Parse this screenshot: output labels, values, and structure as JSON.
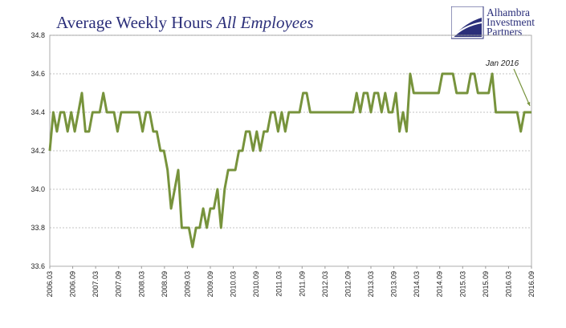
{
  "title": {
    "main": "Average Weekly Hours",
    "italic": "All Employees"
  },
  "logo": {
    "line1": "Alhambra",
    "line2": "Investment",
    "line3": "Partners"
  },
  "colors": {
    "line": "#77933c",
    "title": "#2b2f7a",
    "grid": "#b0b0b0"
  },
  "chart_data": {
    "type": "line",
    "title": "Average Weekly Hours All Employees",
    "xlabel": "",
    "ylabel": "",
    "ylim": [
      33.6,
      34.8
    ],
    "yticks": [
      "33.6",
      "33.8",
      "34.0",
      "34.2",
      "34.4",
      "34.6",
      "34.8"
    ],
    "xticks": [
      "2006.03",
      "2006.09",
      "2007.03",
      "2007.09",
      "2008.03",
      "2008.09",
      "2009.03",
      "2009.09",
      "2010.03",
      "2010.09",
      "2011.03",
      "2011.09",
      "2012.03",
      "2012.09",
      "2013.03",
      "2013.09",
      "2014.03",
      "2014.09",
      "2015.03",
      "2015.09",
      "2016.03",
      "2016.09"
    ],
    "grid": "horizontal-dashed",
    "annotation": {
      "text": "Jan 2016",
      "target": "2016.09"
    },
    "series": [
      {
        "values": [
          34.2,
          34.4,
          34.3,
          34.4,
          34.4,
          34.3,
          34.4,
          34.3,
          34.4,
          34.5,
          34.3,
          34.3,
          34.4,
          34.4,
          34.4,
          34.5,
          34.4,
          34.4,
          34.4,
          34.3,
          34.4,
          34.4,
          34.4,
          34.4,
          34.4,
          34.4,
          34.3,
          34.4,
          34.4,
          34.3,
          34.3,
          34.2,
          34.2,
          34.1,
          33.9,
          34.0,
          34.1,
          33.8,
          33.8,
          33.8,
          33.7,
          33.8,
          33.8,
          33.9,
          33.8,
          33.9,
          33.9,
          34.0,
          33.8,
          34.0,
          34.1,
          34.1,
          34.1,
          34.2,
          34.2,
          34.3,
          34.3,
          34.2,
          34.3,
          34.2,
          34.3,
          34.3,
          34.4,
          34.4,
          34.3,
          34.4,
          34.3,
          34.4,
          34.4,
          34.4,
          34.4,
          34.5,
          34.5,
          34.4,
          34.4,
          34.4,
          34.4,
          34.4,
          34.4,
          34.4,
          34.4,
          34.4,
          34.4,
          34.4,
          34.4,
          34.4,
          34.5,
          34.4,
          34.5,
          34.5,
          34.4,
          34.5,
          34.5,
          34.4,
          34.5,
          34.4,
          34.4,
          34.5,
          34.3,
          34.4,
          34.3,
          34.6,
          34.5,
          34.5,
          34.5,
          34.5,
          34.5,
          34.5,
          34.5,
          34.5,
          34.6,
          34.6,
          34.6,
          34.6,
          34.5,
          34.5,
          34.5,
          34.5,
          34.6,
          34.6,
          34.5,
          34.5,
          34.5,
          34.5,
          34.6,
          34.4,
          34.4,
          34.4,
          34.4,
          34.4,
          34.4,
          34.4,
          34.3,
          34.4,
          34.4,
          34.4
        ]
      }
    ]
  }
}
